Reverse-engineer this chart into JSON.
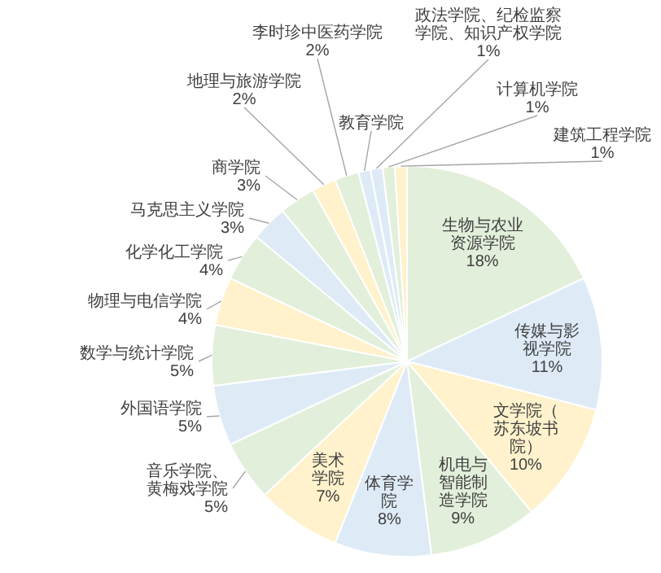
{
  "chart_data": {
    "type": "pie",
    "categories": [
      "生物与农业资源学院",
      "传媒与影视学院",
      "文学院（苏东坡书院）",
      "机电与智能制造学院",
      "体育学院",
      "美术学院",
      "音乐学院、黄梅戏学院",
      "外国语学院",
      "数学与统计学院",
      "物理与电信学院",
      "化学化工学院",
      "马克思主义学院",
      "商学院",
      "地理与旅游学院",
      "李时珍中医药学院",
      "教育学院",
      "政法学院、纪检监察学院、知识产权学院",
      "计算机学院",
      "建筑工程学院"
    ],
    "values": [
      18,
      11,
      10,
      9,
      8,
      7,
      5,
      5,
      5,
      4,
      4,
      3,
      3,
      2,
      2,
      1,
      1,
      1,
      1
    ],
    "value_labels": [
      "18%",
      "11%",
      "10%",
      "9%",
      "8%",
      "7%",
      "5%",
      "5%",
      "5%",
      "4%",
      "4%",
      "3%",
      "3%",
      "2%",
      "2%",
      null,
      "1%",
      "1%",
      "1%"
    ],
    "colors": [
      "#e2efda",
      "#deebf7",
      "#fff2cc",
      "#e2efda",
      "#deebf7",
      "#fff2cc",
      "#e2efda",
      "#deebf7",
      "#e2efda",
      "#fff2cc",
      "#e2efda",
      "#deebf7",
      "#e2efda",
      "#fff2cc",
      "#e2efda",
      "#deebf7",
      "#deebf7",
      "#e2efda",
      "#fff2cc"
    ]
  }
}
